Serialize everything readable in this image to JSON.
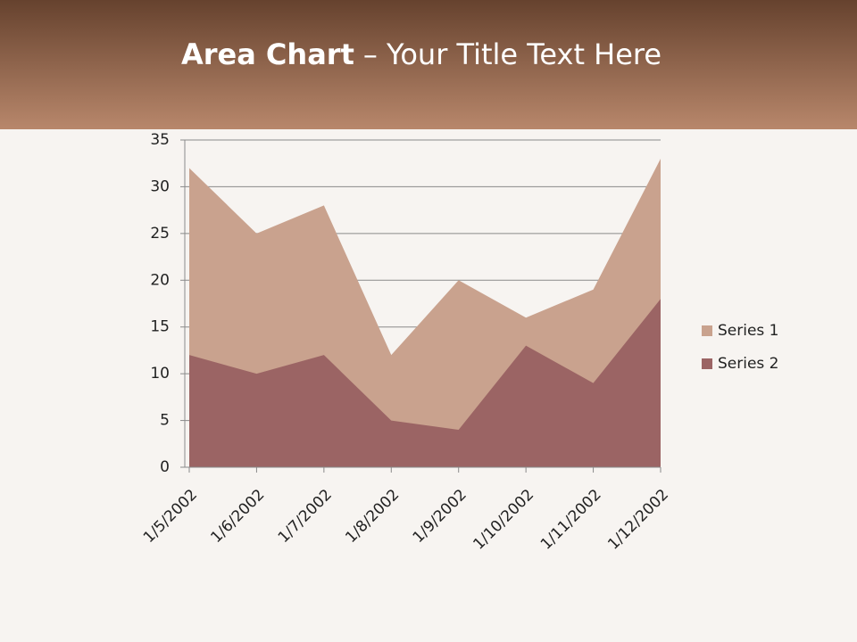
{
  "title": [
    "Area Chart",
    "– Your Title Text Here"
  ],
  "chart_data": {
    "type": "area",
    "categories": [
      "1/5/2002",
      "1/6/2002",
      "1/7/2002",
      "1/8/2002",
      "1/9/2002",
      "1/10/2002",
      "1/11/2002",
      "1/12/2002"
    ],
    "series": [
      {
        "name": "Series 1",
        "color": "#c9a28e",
        "values": [
          32,
          25,
          28,
          12,
          20,
          16,
          19,
          33
        ]
      },
      {
        "name": "Series 2",
        "color": "#9b6464",
        "values": [
          12,
          10,
          12,
          5,
          4,
          13,
          9,
          18
        ]
      }
    ],
    "ylim": [
      0,
      35
    ],
    "yticks": [
      0,
      5,
      10,
      15,
      20,
      25,
      30,
      35
    ],
    "grid": true,
    "legend": "right"
  }
}
